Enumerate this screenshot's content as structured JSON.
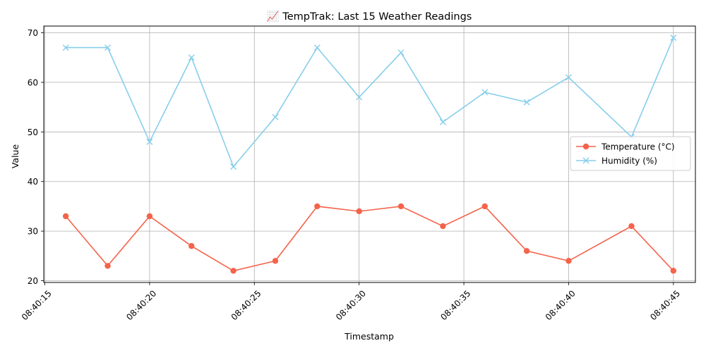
{
  "chart_data": {
    "type": "line",
    "title": "📈 TempTrak: Last 15 Weather Readings",
    "xlabel": "Timestamp",
    "ylabel": "Value",
    "x": [
      "08:40:16",
      "08:40:18",
      "08:40:20",
      "08:40:22",
      "08:40:24",
      "08:40:26",
      "08:40:28",
      "08:40:30",
      "08:40:32",
      "08:40:34",
      "08:40:36",
      "08:40:38",
      "08:40:40",
      "08:40:43",
      "08:40:45"
    ],
    "xticks": [
      "08:40:15",
      "08:40:20",
      "08:40:25",
      "08:40:30",
      "08:40:35",
      "08:40:40",
      "08:40:45"
    ],
    "xlim": [
      "08:40:14.95",
      "08:40:46.05"
    ],
    "yticks": [
      20,
      30,
      40,
      50,
      60,
      70
    ],
    "ylim": [
      19.65,
      71.35
    ],
    "grid": true,
    "legend_position": "center-right",
    "series": [
      {
        "name": "Temperature (°C)",
        "color": "#f4634b",
        "marker": "circle",
        "values": [
          33,
          23,
          33,
          27,
          22,
          24,
          35,
          34,
          35,
          31,
          35,
          26,
          24,
          31,
          22
        ]
      },
      {
        "name": "Humidity (%)",
        "color": "#87ceeb",
        "marker": "x",
        "values": [
          67,
          67,
          48,
          65,
          43,
          53,
          67,
          57,
          66,
          52,
          58,
          56,
          61,
          49,
          69
        ]
      }
    ]
  }
}
